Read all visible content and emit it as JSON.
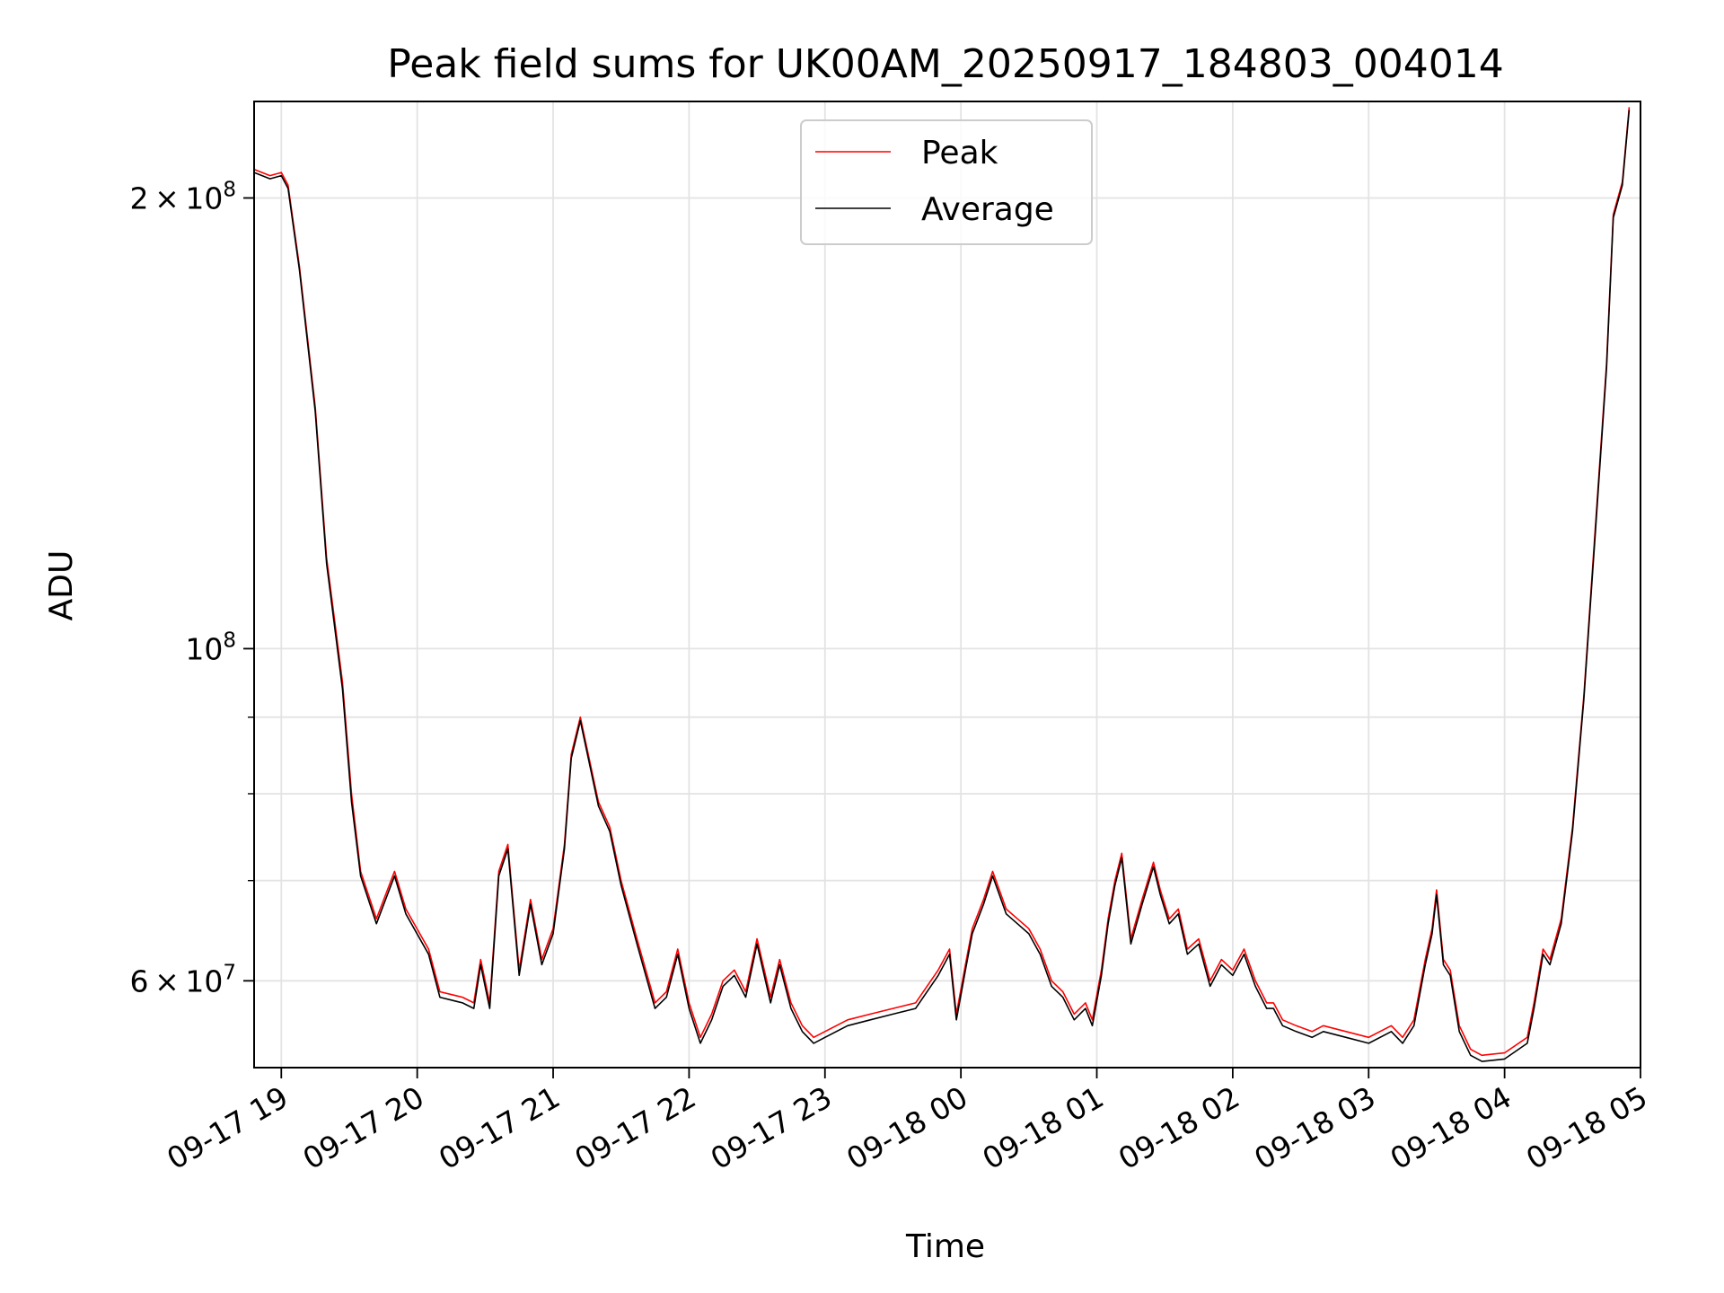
{
  "chart_data": {
    "type": "line",
    "title": "Peak field sums for UK00AM_20250917_184803_004014",
    "xlabel": "Time",
    "ylabel": "ADU",
    "y_scale": "log",
    "ylim": [
      52500000,
      232000000
    ],
    "xlim": [
      "2025-09-17 18:48",
      "2025-09-18 05:00"
    ],
    "grid": true,
    "legend_position": "upper center",
    "x_tick_labels": [
      "09-17 19",
      "09-17 20",
      "09-17 21",
      "09-17 22",
      "09-17 23",
      "09-18 00",
      "09-18 01",
      "09-18 02",
      "09-18 03",
      "09-18 04",
      "09-18 05"
    ],
    "y_tick_labels": [
      {
        "value": 200000000,
        "mantissa": "2",
        "times": "×",
        "base": "10",
        "exp": "8"
      },
      {
        "value": 100000000,
        "mantissa": "",
        "times": "",
        "base": "10",
        "exp": "8"
      },
      {
        "value": 60000000,
        "mantissa": "6",
        "times": "×",
        "base": "10",
        "exp": "7"
      }
    ],
    "series": [
      {
        "name": "Peak",
        "color": "#ff0000",
        "x": [
          "2025-09-17 18:48",
          "2025-09-17 18:55",
          "2025-09-17 19:00",
          "2025-09-17 19:03",
          "2025-09-17 19:08",
          "2025-09-17 19:15",
          "2025-09-17 19:20",
          "2025-09-17 19:23",
          "2025-09-17 19:27",
          "2025-09-17 19:31",
          "2025-09-17 19:35",
          "2025-09-17 19:42",
          "2025-09-17 19:50",
          "2025-09-17 19:55",
          "2025-09-17 20:05",
          "2025-09-17 20:10",
          "2025-09-17 20:20",
          "2025-09-17 20:25",
          "2025-09-17 20:28",
          "2025-09-17 20:32",
          "2025-09-17 20:36",
          "2025-09-17 20:40",
          "2025-09-17 20:45",
          "2025-09-17 20:50",
          "2025-09-17 20:55",
          "2025-09-17 21:00",
          "2025-09-17 21:05",
          "2025-09-17 21:08",
          "2025-09-17 21:12",
          "2025-09-17 21:20",
          "2025-09-17 21:25",
          "2025-09-17 21:30",
          "2025-09-17 21:37",
          "2025-09-17 21:45",
          "2025-09-17 21:50",
          "2025-09-17 21:55",
          "2025-09-17 22:00",
          "2025-09-17 22:05",
          "2025-09-17 22:10",
          "2025-09-17 22:15",
          "2025-09-17 22:20",
          "2025-09-17 22:25",
          "2025-09-17 22:30",
          "2025-09-17 22:36",
          "2025-09-17 22:40",
          "2025-09-17 22:45",
          "2025-09-17 22:50",
          "2025-09-17 22:55",
          "2025-09-17 23:00",
          "2025-09-17 23:10",
          "2025-09-17 23:20",
          "2025-09-17 23:30",
          "2025-09-17 23:40",
          "2025-09-17 23:50",
          "2025-09-17 23:55",
          "2025-09-17 23:58",
          "2025-09-18 00:02",
          "2025-09-18 00:05",
          "2025-09-18 00:10",
          "2025-09-18 00:14",
          "2025-09-18 00:20",
          "2025-09-18 00:25",
          "2025-09-18 00:30",
          "2025-09-18 00:35",
          "2025-09-18 00:40",
          "2025-09-18 00:45",
          "2025-09-18 00:50",
          "2025-09-18 00:55",
          "2025-09-18 00:58",
          "2025-09-18 01:02",
          "2025-09-18 01:05",
          "2025-09-18 01:08",
          "2025-09-18 01:11",
          "2025-09-18 01:15",
          "2025-09-18 01:20",
          "2025-09-18 01:25",
          "2025-09-18 01:28",
          "2025-09-18 01:32",
          "2025-09-18 01:36",
          "2025-09-18 01:40",
          "2025-09-18 01:45",
          "2025-09-18 01:50",
          "2025-09-18 01:55",
          "2025-09-18 02:00",
          "2025-09-18 02:05",
          "2025-09-18 02:10",
          "2025-09-18 02:15",
          "2025-09-18 02:18",
          "2025-09-18 02:22",
          "2025-09-18 02:28",
          "2025-09-18 02:35",
          "2025-09-18 02:40",
          "2025-09-18 02:50",
          "2025-09-18 03:00",
          "2025-09-18 03:10",
          "2025-09-18 03:15",
          "2025-09-18 03:20",
          "2025-09-18 03:25",
          "2025-09-18 03:28",
          "2025-09-18 03:30",
          "2025-09-18 03:33",
          "2025-09-18 03:36",
          "2025-09-18 03:40",
          "2025-09-18 03:45",
          "2025-09-18 03:50",
          "2025-09-18 04:00",
          "2025-09-18 04:10",
          "2025-09-18 04:13",
          "2025-09-18 04:17",
          "2025-09-18 04:20",
          "2025-09-18 04:25",
          "2025-09-18 04:30",
          "2025-09-18 04:35",
          "2025-09-18 04:40",
          "2025-09-18 04:45",
          "2025-09-18 04:48",
          "2025-09-18 04:52",
          "2025-09-18 04:55"
        ],
        "values": [
          209000000,
          207000000,
          208000000,
          204000000,
          180000000,
          145000000,
          115000000,
          106000000,
          95000000,
          80000000,
          71000000,
          66000000,
          71000000,
          67000000,
          63000000,
          59000000,
          58500000,
          58000000,
          62000000,
          58000000,
          71000000,
          74000000,
          61000000,
          68000000,
          62000000,
          65000000,
          74000000,
          85000000,
          90000000,
          79000000,
          76000000,
          70000000,
          64000000,
          58000000,
          59000000,
          63000000,
          58000000,
          55000000,
          57000000,
          60000000,
          61000000,
          59000000,
          64000000,
          58500000,
          62000000,
          58000000,
          56000000,
          55000000,
          55500000,
          56500000,
          57000000,
          57500000,
          58000000,
          61000000,
          63000000,
          57000000,
          61500000,
          65000000,
          68000000,
          71000000,
          67000000,
          66000000,
          65000000,
          63000000,
          60000000,
          59000000,
          57000000,
          58000000,
          56500000,
          61000000,
          66000000,
          70000000,
          73000000,
          64000000,
          68000000,
          72000000,
          69000000,
          66000000,
          67000000,
          63000000,
          64000000,
          60000000,
          62000000,
          61000000,
          63000000,
          60000000,
          58000000,
          58000000,
          56500000,
          56000000,
          55500000,
          56000000,
          55500000,
          55000000,
          56000000,
          55000000,
          56500000,
          62000000,
          65000000,
          69000000,
          62000000,
          61000000,
          56000000,
          54000000,
          53500000,
          53700000,
          55000000,
          58000000,
          63000000,
          62000000,
          66000000,
          76000000,
          93000000,
          120000000,
          155000000,
          195000000,
          205000000,
          230000000
        ]
      },
      {
        "name": "Average",
        "color": "#000000",
        "x": [
          "2025-09-17 18:48",
          "2025-09-17 18:55",
          "2025-09-17 19:00",
          "2025-09-17 19:03",
          "2025-09-17 19:08",
          "2025-09-17 19:15",
          "2025-09-17 19:20",
          "2025-09-17 19:23",
          "2025-09-17 19:27",
          "2025-09-17 19:31",
          "2025-09-17 19:35",
          "2025-09-17 19:42",
          "2025-09-17 19:50",
          "2025-09-17 19:55",
          "2025-09-17 20:05",
          "2025-09-17 20:10",
          "2025-09-17 20:20",
          "2025-09-17 20:25",
          "2025-09-17 20:28",
          "2025-09-17 20:32",
          "2025-09-17 20:36",
          "2025-09-17 20:40",
          "2025-09-17 20:45",
          "2025-09-17 20:50",
          "2025-09-17 20:55",
          "2025-09-17 21:00",
          "2025-09-17 21:05",
          "2025-09-17 21:08",
          "2025-09-17 21:12",
          "2025-09-17 21:20",
          "2025-09-17 21:25",
          "2025-09-17 21:30",
          "2025-09-17 21:37",
          "2025-09-17 21:45",
          "2025-09-17 21:50",
          "2025-09-17 21:55",
          "2025-09-17 22:00",
          "2025-09-17 22:05",
          "2025-09-17 22:10",
          "2025-09-17 22:15",
          "2025-09-17 22:20",
          "2025-09-17 22:25",
          "2025-09-17 22:30",
          "2025-09-17 22:36",
          "2025-09-17 22:40",
          "2025-09-17 22:45",
          "2025-09-17 22:50",
          "2025-09-17 22:55",
          "2025-09-17 23:00",
          "2025-09-17 23:10",
          "2025-09-17 23:20",
          "2025-09-17 23:30",
          "2025-09-17 23:40",
          "2025-09-17 23:50",
          "2025-09-17 23:55",
          "2025-09-17 23:58",
          "2025-09-18 00:02",
          "2025-09-18 00:05",
          "2025-09-18 00:10",
          "2025-09-18 00:14",
          "2025-09-18 00:20",
          "2025-09-18 00:25",
          "2025-09-18 00:30",
          "2025-09-18 00:35",
          "2025-09-18 00:40",
          "2025-09-18 00:45",
          "2025-09-18 00:50",
          "2025-09-18 00:55",
          "2025-09-18 00:58",
          "2025-09-18 01:02",
          "2025-09-18 01:05",
          "2025-09-18 01:08",
          "2025-09-18 01:11",
          "2025-09-18 01:15",
          "2025-09-18 01:20",
          "2025-09-18 01:25",
          "2025-09-18 01:28",
          "2025-09-18 01:32",
          "2025-09-18 01:36",
          "2025-09-18 01:40",
          "2025-09-18 01:45",
          "2025-09-18 01:50",
          "2025-09-18 01:55",
          "2025-09-18 02:00",
          "2025-09-18 02:05",
          "2025-09-18 02:10",
          "2025-09-18 02:15",
          "2025-09-18 02:18",
          "2025-09-18 02:22",
          "2025-09-18 02:28",
          "2025-09-18 02:35",
          "2025-09-18 02:40",
          "2025-09-18 02:50",
          "2025-09-18 03:00",
          "2025-09-18 03:10",
          "2025-09-18 03:15",
          "2025-09-18 03:20",
          "2025-09-18 03:25",
          "2025-09-18 03:28",
          "2025-09-18 03:30",
          "2025-09-18 03:33",
          "2025-09-18 03:36",
          "2025-09-18 03:40",
          "2025-09-18 03:45",
          "2025-09-18 03:50",
          "2025-09-18 04:00",
          "2025-09-18 04:10",
          "2025-09-18 04:13",
          "2025-09-18 04:17",
          "2025-09-18 04:20",
          "2025-09-18 04:25",
          "2025-09-18 04:30",
          "2025-09-18 04:35",
          "2025-09-18 04:40",
          "2025-09-18 04:45",
          "2025-09-18 04:48",
          "2025-09-18 04:52",
          "2025-09-18 04:55"
        ],
        "values": [
          208000000,
          206000000,
          207000000,
          203000000,
          179000000,
          144000000,
          114000000,
          105000000,
          94000000,
          79000000,
          70500000,
          65500000,
          70500000,
          66500000,
          62500000,
          58500000,
          58000000,
          57500000,
          61500000,
          57500000,
          70500000,
          73500000,
          60500000,
          67500000,
          61500000,
          64500000,
          73500000,
          84500000,
          89500000,
          78500000,
          75500000,
          69500000,
          63500000,
          57500000,
          58500000,
          62500000,
          57500000,
          54500000,
          56500000,
          59500000,
          60500000,
          58500000,
          63500000,
          58000000,
          61500000,
          57500000,
          55500000,
          54500000,
          55000000,
          56000000,
          56500000,
          57000000,
          57500000,
          60500000,
          62500000,
          56500000,
          61000000,
          64500000,
          67500000,
          70500000,
          66500000,
          65500000,
          64500000,
          62500000,
          59500000,
          58500000,
          56500000,
          57500000,
          56000000,
          60500000,
          65500000,
          69500000,
          72500000,
          63500000,
          67500000,
          71500000,
          68500000,
          65500000,
          66500000,
          62500000,
          63500000,
          59500000,
          61500000,
          60500000,
          62500000,
          59500000,
          57500000,
          57500000,
          56000000,
          55500000,
          55000000,
          55500000,
          55000000,
          54500000,
          55500000,
          54500000,
          56000000,
          61500000,
          64500000,
          68500000,
          61500000,
          60500000,
          55500000,
          53500000,
          53000000,
          53200000,
          54500000,
          57500000,
          62500000,
          61500000,
          65500000,
          75500000,
          92500000,
          119000000,
          154000000,
          194000000,
          204000000,
          229000000
        ]
      }
    ]
  }
}
